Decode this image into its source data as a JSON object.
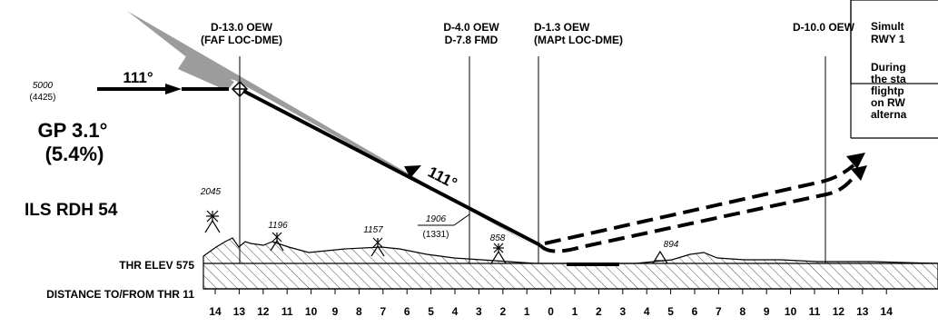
{
  "fixes": [
    {
      "line1": "D-13.0 OEW",
      "line2": "(FAF LOC-DME)"
    },
    {
      "line1": "D-4.0 OEW",
      "line2": "D-7.8 FMD"
    },
    {
      "line1": "D-1.3 OEW",
      "line2": "(MAPt LOC-DME)"
    },
    {
      "line1": "D-10.0 OEW",
      "line2": ""
    }
  ],
  "approach": {
    "inbound_course": "111°",
    "glidepath_course": "111°",
    "altitude": "5000",
    "altitude_agl": "(4425)",
    "gp_angle": "GP 3.1°",
    "gp_percent": "(5.4%)",
    "rdh": "ILS RDH 54",
    "crossing_alt": "1906",
    "crossing_alt_agl": "(1331)"
  },
  "obstacles": [
    {
      "elev": "2045"
    },
    {
      "elev": "1196"
    },
    {
      "elev": "1157"
    },
    {
      "elev": "858"
    },
    {
      "elev": "894"
    }
  ],
  "threshold": {
    "elev_label": "THR ELEV 575",
    "distance_label": "DISTANCE TO/FROM THR 11"
  },
  "distance_ticks": [
    "14",
    "13",
    "12",
    "11",
    "10",
    "9",
    "8",
    "7",
    "6",
    "5",
    "4",
    "3",
    "2",
    "1",
    "0",
    "1",
    "2",
    "3",
    "4",
    "5",
    "6",
    "7",
    "8",
    "9",
    "10",
    "11",
    "12",
    "13",
    "14"
  ],
  "note_box": {
    "lines": [
      "Simult",
      "RWY 1",
      "",
      "During",
      "the sta",
      "flightp",
      "on RW",
      "alterna"
    ]
  }
}
